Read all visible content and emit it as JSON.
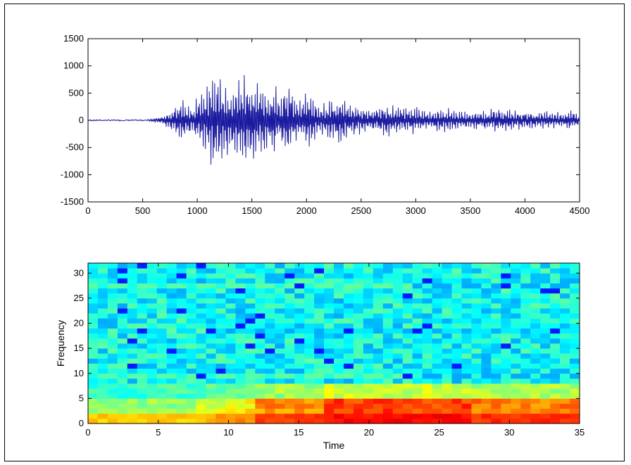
{
  "chart_data": [
    {
      "type": "line",
      "title": "",
      "xlabel": "",
      "ylabel": "",
      "xlim": [
        0,
        4500
      ],
      "ylim": [
        -1500,
        1500
      ],
      "x_ticks": [
        0,
        500,
        1000,
        1500,
        2000,
        2500,
        3000,
        3500,
        4000,
        4500
      ],
      "y_ticks": [
        -1500,
        -1000,
        -500,
        0,
        500,
        1000,
        1500
      ],
      "line_color": "#1a1aa0",
      "series": [
        {
          "x": [
            0,
            100,
            200,
            300,
            400,
            500,
            550,
            600,
            650,
            700,
            750,
            800,
            850,
            900,
            950,
            1000,
            1050,
            1100,
            1150,
            1200,
            1250,
            1300,
            1350,
            1400,
            1450,
            1500,
            1550,
            1600,
            1650,
            1700,
            1750,
            1800,
            1850,
            1900,
            1950,
            2000,
            2100,
            2200,
            2300,
            2400,
            2500,
            2600,
            2700,
            2800,
            2900,
            3000,
            3100,
            3200,
            3300,
            3400,
            3500,
            3600,
            3700,
            3800,
            3900,
            4000,
            4100,
            4200,
            4300,
            4400,
            4500
          ],
          "y": [
            0,
            5,
            -5,
            5,
            -5,
            10,
            -20,
            40,
            -80,
            120,
            -200,
            300,
            -450,
            350,
            -250,
            500,
            -650,
            850,
            -900,
            1000,
            -850,
            800,
            -750,
            900,
            -1000,
            1050,
            -700,
            750,
            -600,
            850,
            -450,
            950,
            -700,
            450,
            -400,
            600,
            -350,
            420,
            -480,
            350,
            -300,
            260,
            -320,
            300,
            -250,
            280,
            -200,
            220,
            -240,
            190,
            -170,
            200,
            -230,
            250,
            -190,
            210,
            -160,
            180,
            -170,
            200,
            -120
          ]
        }
      ]
    },
    {
      "type": "heatmap",
      "title": "",
      "xlabel": "Time",
      "ylabel": "Frequency",
      "xlim": [
        0,
        35
      ],
      "ylim": [
        0,
        32
      ],
      "x_ticks": [
        0,
        5,
        10,
        15,
        20,
        25,
        30,
        35
      ],
      "y_ticks": [
        0,
        5,
        10,
        15,
        20,
        25,
        30
      ],
      "colormap": "jet",
      "color_range": [
        0,
        1
      ],
      "x_bins": 50,
      "y_bins": 32,
      "description_of_intensity": "low-frequency band (0-5) shows high energy (red) from time ~12 to 35, strongest near 18-26; rest mostly cyan/green"
    }
  ]
}
